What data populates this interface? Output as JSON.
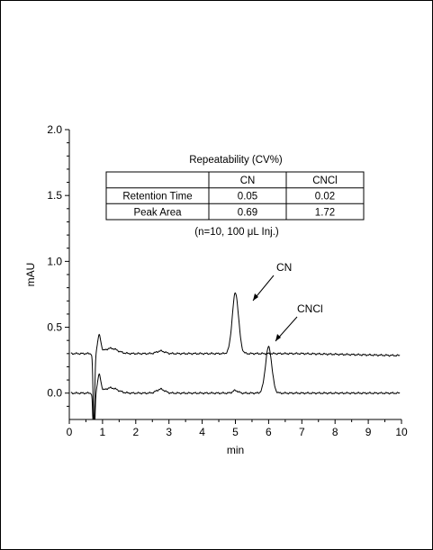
{
  "chart_data": {
    "type": "line",
    "xlabel": "min",
    "ylabel": "mAU",
    "xlim": [
      0,
      10
    ],
    "ylim": [
      -0.2,
      2.0
    ],
    "xticks": [
      "0",
      "1",
      "2",
      "3",
      "4",
      "5",
      "6",
      "7",
      "8",
      "9",
      "10"
    ],
    "yticks": [
      "2.0",
      "1.5",
      "1.0",
      "0.5",
      "0.0"
    ],
    "grid": false,
    "series": [
      {
        "baseline": 0.3,
        "peaks": [
          {
            "x": 5.0,
            "y": 0.76,
            "label": "CN"
          },
          {
            "x": 2.75,
            "y": 0.32
          }
        ]
      },
      {
        "baseline": 0.0,
        "peaks": [
          {
            "x": 6.0,
            "y": 0.35,
            "label": "CNCl"
          },
          {
            "x": 2.75,
            "y": 0.03
          }
        ]
      }
    ],
    "annotations": {
      "cn_label": "CN",
      "cncl_label": "CNCl"
    },
    "inset_table": {
      "title": "Repeatability (CV%)",
      "columns": [
        "",
        "CN",
        "CNCl"
      ],
      "rows": [
        [
          "Retention Time",
          "0.05",
          "0.02"
        ],
        [
          "Peak Area",
          "0.69",
          "1.72"
        ]
      ],
      "note": "(n=10, 100 μL Inj.)"
    }
  }
}
